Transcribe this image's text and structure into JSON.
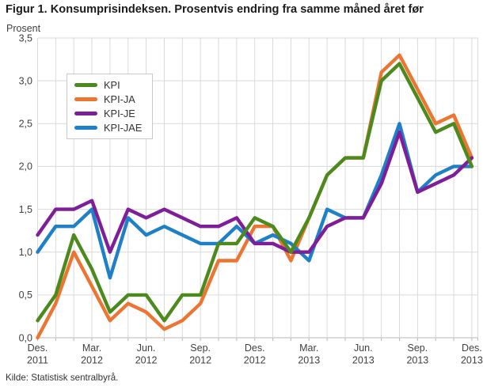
{
  "header": {
    "title": "Figur 1. Konsumprisindeksen. Prosentvis endring fra samme måned året før"
  },
  "footer": {
    "source": "Kilde: Statistisk sentralbyrå."
  },
  "colors": {
    "grid": "#d9d9d9",
    "axis": "#b9b9b9",
    "kpi_green": "#4d8a1e",
    "kpi_ja_orange": "#ed7532",
    "kpi_je_purple": "#7e1f99",
    "kpi_jae_blue": "#1e80c6"
  },
  "chart_data": {
    "type": "line",
    "title": "Figur 1. Konsumprisindeksen. Prosentvis endring fra samme måned året før",
    "ylabel": "Prosent",
    "xlabel": "",
    "ylim": [
      0,
      3.5
    ],
    "grid": true,
    "legend_position": "top-left",
    "y_ticks": [
      "0,0",
      "0,5",
      "1,0",
      "1,5",
      "2,0",
      "2,5",
      "3,0",
      "3,5"
    ],
    "x": [
      "Des. 2011",
      "Jan. 2012",
      "Feb. 2012",
      "Mar. 2012",
      "Apr. 2012",
      "Mai 2012",
      "Jun. 2012",
      "Jul. 2012",
      "Aug. 2012",
      "Sep. 2012",
      "Okt. 2012",
      "Nov. 2012",
      "Des. 2012",
      "Jan. 2013",
      "Feb. 2013",
      "Mar. 2013",
      "Apr. 2013",
      "Mai 2013",
      "Jun. 2013",
      "Jul. 2013",
      "Aug. 2013",
      "Sep. 2013",
      "Okt. 2013",
      "Nov. 2013",
      "Des. 2013"
    ],
    "x_axis_labels": [
      {
        "index": 0,
        "line1": "Des.",
        "line2": "2011"
      },
      {
        "index": 3,
        "line1": "Mar.",
        "line2": "2012"
      },
      {
        "index": 6,
        "line1": "Jun.",
        "line2": "2012"
      },
      {
        "index": 9,
        "line1": "Sep.",
        "line2": "2012"
      },
      {
        "index": 12,
        "line1": "Des.",
        "line2": "2012"
      },
      {
        "index": 15,
        "line1": "Mar.",
        "line2": "2013"
      },
      {
        "index": 18,
        "line1": "Jun.",
        "line2": "2013"
      },
      {
        "index": 21,
        "line1": "Sep.",
        "line2": "2013"
      },
      {
        "index": 24,
        "line1": "Des.",
        "line2": "2013"
      }
    ],
    "series": [
      {
        "name": "KPI",
        "color": "#4d8a1e",
        "values": [
          0.2,
          0.5,
          1.2,
          0.8,
          0.3,
          0.5,
          0.5,
          0.2,
          0.5,
          0.5,
          1.1,
          1.1,
          1.4,
          1.3,
          1.0,
          1.4,
          1.9,
          2.1,
          2.1,
          3.0,
          3.2,
          2.8,
          2.4,
          2.5,
          2.0
        ]
      },
      {
        "name": "KPI-JA",
        "color": "#ed7532",
        "values": [
          0.0,
          0.4,
          1.0,
          0.6,
          0.2,
          0.4,
          0.3,
          0.1,
          0.2,
          0.4,
          0.9,
          0.9,
          1.3,
          1.3,
          0.9,
          1.4,
          1.9,
          2.1,
          2.1,
          3.1,
          3.3,
          2.9,
          2.5,
          2.6,
          2.1
        ]
      },
      {
        "name": "KPI-JE",
        "color": "#7e1f99",
        "values": [
          1.2,
          1.5,
          1.5,
          1.6,
          1.0,
          1.5,
          1.4,
          1.5,
          1.4,
          1.3,
          1.3,
          1.4,
          1.1,
          1.1,
          1.0,
          1.0,
          1.3,
          1.4,
          1.4,
          1.8,
          2.4,
          1.7,
          1.8,
          1.9,
          2.1
        ]
      },
      {
        "name": "KPI-JAE",
        "color": "#1e80c6",
        "values": [
          1.0,
          1.3,
          1.3,
          1.5,
          0.7,
          1.4,
          1.2,
          1.3,
          1.2,
          1.1,
          1.1,
          1.3,
          1.1,
          1.2,
          1.1,
          0.9,
          1.5,
          1.4,
          1.4,
          1.9,
          2.5,
          1.7,
          1.9,
          2.0,
          2.0
        ]
      }
    ],
    "draw_order": [
      "KPI-JA",
      "KPI-JAE",
      "KPI-JE",
      "KPI"
    ]
  }
}
